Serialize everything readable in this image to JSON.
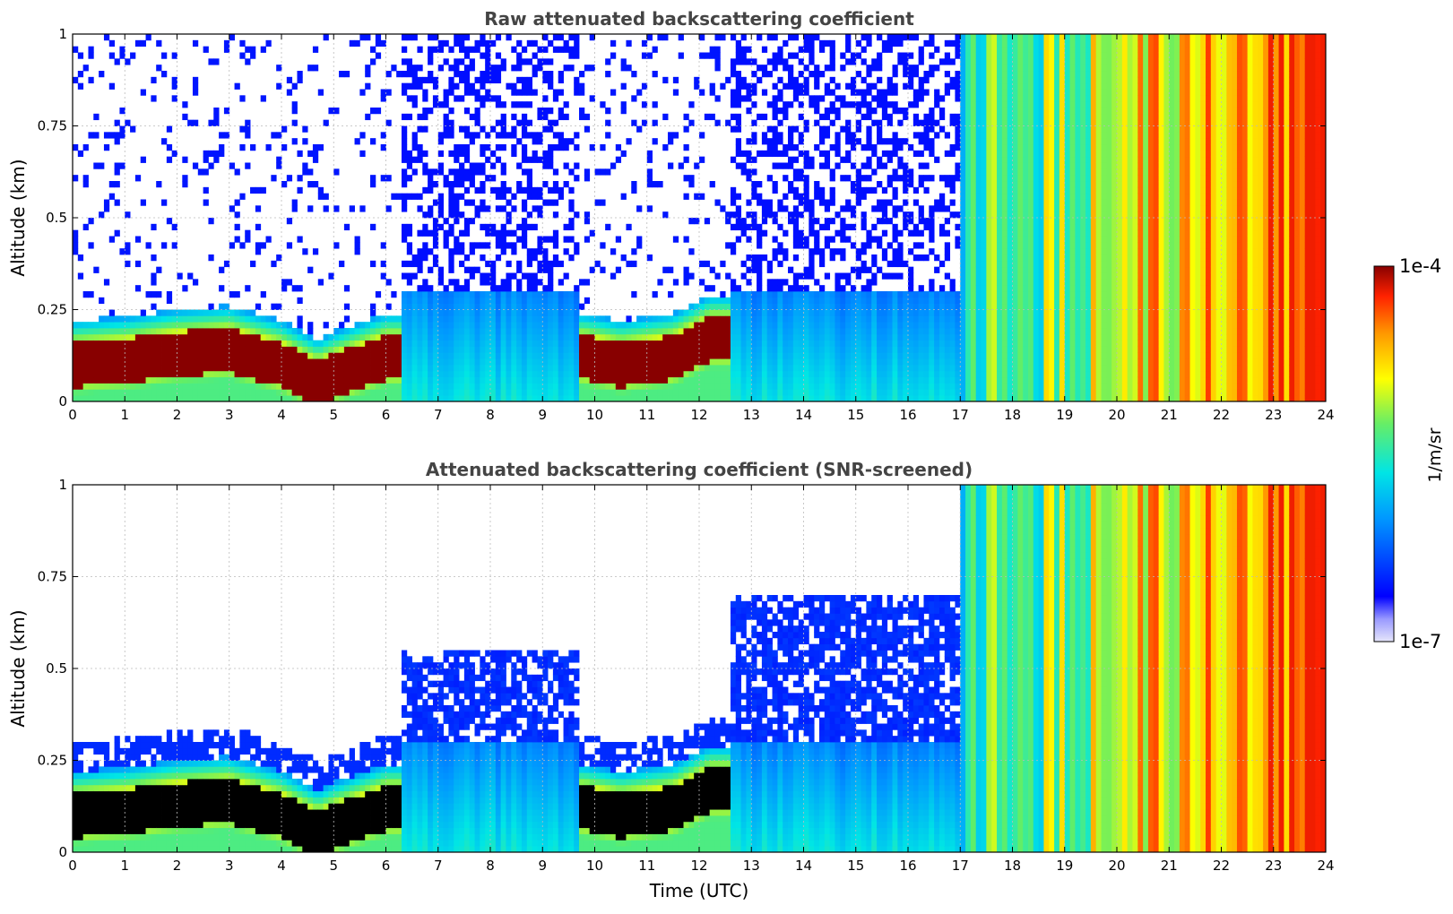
{
  "chart_data": [
    {
      "type": "heatmap",
      "title": "Raw attenuated backscattering coefficient",
      "xlabel": "",
      "ylabel": "Altitude (km)",
      "xlim": [
        0,
        24
      ],
      "ylim": [
        0,
        1
      ],
      "x_ticks": [
        "0",
        "1",
        "2",
        "3",
        "4",
        "5",
        "6",
        "7",
        "8",
        "9",
        "10",
        "11",
        "12",
        "13",
        "14",
        "15",
        "16",
        "17",
        "18",
        "19",
        "20",
        "21",
        "22",
        "23",
        "24"
      ],
      "y_ticks": [
        "0",
        "0.25",
        "0.5",
        "0.75",
        "1"
      ],
      "grid": true,
      "colormap": "jet",
      "color_scale": "log",
      "features": {
        "boundary_layer_peak_km": [
          [
            0,
            0.1
          ],
          [
            1,
            0.11
          ],
          [
            2,
            0.13
          ],
          [
            3,
            0.14
          ],
          [
            4,
            0.1
          ],
          [
            4.7,
            0.05
          ],
          [
            5,
            0.07
          ],
          [
            6,
            0.12
          ],
          [
            9.8,
            0.12
          ],
          [
            10.5,
            0.1
          ],
          [
            11.5,
            0.12
          ],
          [
            12.2,
            0.17
          ]
        ],
        "opaque_periods_utc": [
          [
            17.0,
            24.0
          ]
        ]
      }
    },
    {
      "type": "heatmap",
      "title": "Attenuated backscattering coefficient (SNR-screened)",
      "xlabel": "Time (UTC)",
      "ylabel": "Altitude (km)",
      "xlim": [
        0,
        24
      ],
      "ylim": [
        0,
        1
      ],
      "x_ticks": [
        "0",
        "1",
        "2",
        "3",
        "4",
        "5",
        "6",
        "7",
        "8",
        "9",
        "10",
        "11",
        "12",
        "13",
        "14",
        "15",
        "16",
        "17",
        "18",
        "19",
        "20",
        "21",
        "22",
        "23",
        "24"
      ],
      "y_ticks": [
        "0",
        "0.25",
        "0.5",
        "0.75",
        "1"
      ],
      "grid": true,
      "colormap": "jet",
      "color_scale": "log",
      "features": {
        "boundary_layer_peak_km": [
          [
            0,
            0.1
          ],
          [
            1,
            0.11
          ],
          [
            2,
            0.13
          ],
          [
            3,
            0.14
          ],
          [
            4,
            0.1
          ],
          [
            4.7,
            0.05
          ],
          [
            5,
            0.07
          ],
          [
            6,
            0.12
          ],
          [
            9.8,
            0.12
          ],
          [
            10.5,
            0.1
          ],
          [
            11.5,
            0.12
          ],
          [
            12.2,
            0.17
          ]
        ],
        "opaque_periods_utc": [
          [
            17.0,
            24.0
          ]
        ]
      }
    }
  ],
  "colorbar": {
    "max_label": "1e-4",
    "min_label": "1e-7",
    "label": "1/m/sr",
    "range": [
      1e-07,
      0.0001
    ]
  }
}
